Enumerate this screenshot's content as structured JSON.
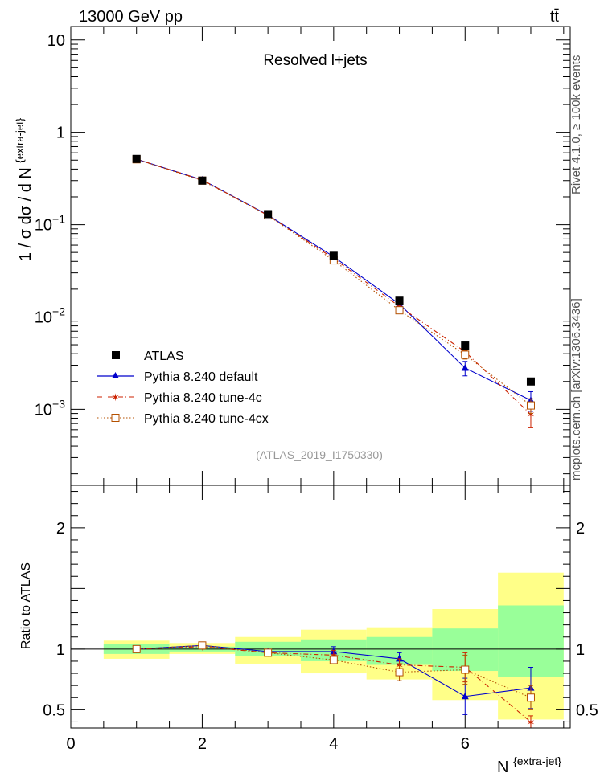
{
  "header": {
    "energy_label": "13000 GeV pp",
    "process_label": "tt̄"
  },
  "side_labels": {
    "rivet": "Rivet 4.1.0, ≥ 100k events",
    "mcplots": "mcplots.cern.ch [arXiv:1306.3436]"
  },
  "chart_data": [
    {
      "type": "scatter",
      "name": "main-panel",
      "title": "Resolved l+jets",
      "analysis_label": "(ATLAS_2019_I1750330)",
      "ylabel": "1 / σ dσ / d N",
      "ylabel_sup": "{extra-jet}",
      "yscale": "log",
      "ylim": [
        0.00015,
        14
      ],
      "xlim": [
        0,
        7.6
      ],
      "y_ticks": [
        {
          "value": 0.001,
          "base": "10",
          "exp": "−3"
        },
        {
          "value": 0.01,
          "base": "10",
          "exp": "−2"
        },
        {
          "value": 0.1,
          "base": "10",
          "exp": "−1"
        },
        {
          "value": 1,
          "base": "1",
          "exp": ""
        },
        {
          "value": 10,
          "base": "10",
          "exp": ""
        }
      ],
      "series": [
        {
          "name": "ATLAS",
          "color": "#000000",
          "marker": "square-filled",
          "line": "none",
          "x": [
            1,
            2,
            3,
            4,
            5,
            6,
            7
          ],
          "y": [
            0.515,
            0.3,
            0.13,
            0.046,
            0.015,
            0.0049,
            0.002
          ]
        },
        {
          "name": "Pythia 8.240 default",
          "color": "#0000cc",
          "marker": "triangle-filled",
          "line": "solid",
          "x": [
            1,
            2,
            3,
            4,
            5,
            6,
            7
          ],
          "y": [
            0.512,
            0.305,
            0.127,
            0.045,
            0.0138,
            0.0028,
            0.00125
          ],
          "yerr": [
            0,
            0,
            0,
            0,
            0,
            0.0005,
            0.0003
          ]
        },
        {
          "name": "Pythia 8.240 tune-4c",
          "color": "#cc2200",
          "marker": "star",
          "line": "dashdot",
          "x": [
            1,
            2,
            3,
            4,
            5,
            6,
            7
          ],
          "y": [
            0.512,
            0.305,
            0.126,
            0.043,
            0.013,
            0.0042,
            0.00088
          ],
          "yerr": [
            0,
            0,
            0,
            0,
            0,
            0.0005,
            0.00025
          ]
        },
        {
          "name": "Pythia 8.240 tune-4cx",
          "color": "#b45000",
          "marker": "square-open",
          "line": "dotted",
          "x": [
            1,
            2,
            3,
            4,
            5,
            6,
            7
          ],
          "y": [
            0.51,
            0.3,
            0.126,
            0.041,
            0.0118,
            0.0039,
            0.0011
          ],
          "yerr": [
            0,
            0,
            0,
            0,
            0,
            0.0004,
            0.0002
          ]
        }
      ]
    },
    {
      "type": "scatter",
      "name": "ratio-panel",
      "ylabel": "Ratio to ATLAS",
      "xlabel": "N",
      "xlabel_sup": "{extra-jet}",
      "ylim": [
        0.35,
        2.35
      ],
      "xlim": [
        0,
        7.6
      ],
      "x_ticks": [
        0,
        2,
        4,
        6
      ],
      "y_ticks": [
        0.5,
        1,
        1.5,
        2
      ],
      "y_tick_labels": [
        "0.5",
        "1",
        "",
        "2"
      ],
      "reference": 1,
      "bands": [
        {
          "x0": 0.5,
          "x1": 1.5,
          "yellow": [
            0.92,
            1.07
          ],
          "green": [
            0.96,
            1.04
          ]
        },
        {
          "x0": 1.5,
          "x1": 2.5,
          "yellow": [
            0.96,
            1.05
          ],
          "green": [
            0.98,
            1.02
          ]
        },
        {
          "x0": 2.5,
          "x1": 3.5,
          "yellow": [
            0.88,
            1.1
          ],
          "green": [
            0.94,
            1.06
          ]
        },
        {
          "x0": 3.5,
          "x1": 4.5,
          "yellow": [
            0.8,
            1.16
          ],
          "green": [
            0.9,
            1.08
          ]
        },
        {
          "x0": 4.5,
          "x1": 5.5,
          "yellow": [
            0.75,
            1.18
          ],
          "green": [
            0.87,
            1.1
          ]
        },
        {
          "x0": 5.5,
          "x1": 6.5,
          "yellow": [
            0.58,
            1.33
          ],
          "green": [
            0.82,
            1.17
          ]
        },
        {
          "x0": 6.5,
          "x1": 7.5,
          "yellow": [
            0.42,
            1.63
          ],
          "green": [
            0.77,
            1.36
          ]
        }
      ],
      "series": [
        {
          "name": "Pythia 8.240 default",
          "color": "#0000cc",
          "marker": "triangle-filled",
          "line": "solid",
          "x": [
            1,
            2,
            3,
            4,
            5,
            6,
            7
          ],
          "y": [
            1.0,
            1.03,
            0.98,
            0.98,
            0.92,
            0.61,
            0.68
          ],
          "yerr": [
            0.01,
            0.01,
            0.015,
            0.04,
            0.05,
            0.15,
            0.17
          ]
        },
        {
          "name": "Pythia 8.240 tune-4c",
          "color": "#cc2200",
          "marker": "star",
          "line": "dashdot",
          "x": [
            1,
            2,
            3,
            4,
            5,
            6,
            7
          ],
          "y": [
            1.0,
            1.02,
            0.97,
            0.95,
            0.87,
            0.85,
            0.4
          ],
          "yerr": [
            0.01,
            0.01,
            0.015,
            0.04,
            0.05,
            0.12,
            0.05
          ]
        },
        {
          "name": "Pythia 8.240 tune-4cx",
          "color": "#b45000",
          "marker": "square-open",
          "line": "dotted",
          "x": [
            1,
            2,
            3,
            4,
            5,
            6,
            7
          ],
          "y": [
            1.0,
            1.03,
            0.97,
            0.91,
            0.81,
            0.83,
            0.6
          ],
          "yerr": [
            0.01,
            0.01,
            0.015,
            0.03,
            0.07,
            0.12,
            0.1
          ]
        }
      ]
    }
  ]
}
